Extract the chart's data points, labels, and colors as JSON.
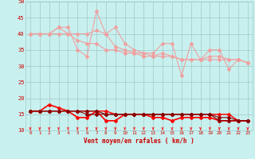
{
  "x": [
    0,
    1,
    2,
    3,
    4,
    5,
    6,
    7,
    8,
    9,
    10,
    11,
    12,
    13,
    14,
    15,
    16,
    17,
    18,
    19,
    20,
    21,
    22,
    23
  ],
  "series_upper": [
    [
      40,
      40,
      40,
      42,
      42,
      35,
      33,
      47,
      40,
      42,
      37,
      35,
      34,
      34,
      37,
      37,
      27,
      37,
      32,
      35,
      35,
      29,
      32,
      31
    ],
    [
      40,
      40,
      40,
      42,
      40,
      40,
      40,
      41,
      40,
      36,
      35,
      34,
      34,
      33,
      34,
      33,
      32,
      32,
      32,
      33,
      33,
      32,
      32,
      31
    ],
    [
      40,
      40,
      40,
      40,
      40,
      38,
      37,
      37,
      35,
      35,
      34,
      34,
      33,
      33,
      33,
      33,
      32,
      32,
      32,
      32,
      32,
      32,
      32,
      31
    ]
  ],
  "series_lower": [
    [
      16,
      16,
      18,
      17,
      16,
      14,
      14,
      16,
      13,
      13,
      15,
      15,
      15,
      14,
      14,
      13,
      14,
      14,
      14,
      14,
      13,
      13,
      13,
      13
    ],
    [
      16,
      16,
      16,
      16,
      16,
      16,
      16,
      16,
      16,
      15,
      15,
      15,
      15,
      15,
      15,
      15,
      15,
      15,
      15,
      15,
      15,
      15,
      13,
      13
    ],
    [
      16,
      16,
      16,
      16,
      16,
      16,
      16,
      16,
      15,
      15,
      15,
      15,
      15,
      15,
      15,
      15,
      15,
      15,
      15,
      15,
      14,
      14,
      13,
      13
    ],
    [
      16,
      16,
      16,
      16,
      16,
      16,
      15,
      15,
      15,
      15,
      15,
      15,
      15,
      15,
      15,
      15,
      15,
      15,
      15,
      15,
      13,
      13,
      13,
      13
    ]
  ],
  "xlabel": "Vent moyen/en rafales ( km/h )",
  "ylim": [
    10,
    50
  ],
  "xlim": [
    -0.5,
    23.5
  ],
  "yticks": [
    10,
    15,
    20,
    25,
    30,
    35,
    40,
    45,
    50
  ],
  "xticks": [
    0,
    1,
    2,
    3,
    4,
    5,
    6,
    7,
    8,
    9,
    10,
    11,
    12,
    13,
    14,
    15,
    16,
    17,
    18,
    19,
    20,
    21,
    22,
    23
  ],
  "bg_color": "#c8f0ee",
  "grid_color": "#a0c8c8",
  "line_color_upper": "#f0a0a0",
  "line_color_lower_red": "#ff0000",
  "line_color_lower_dark": "#880000",
  "arrow_color": "#ff2222",
  "xlabel_color": "#cc0000",
  "tick_color": "#cc0000",
  "marker_color_upper": "#e08080",
  "marker_color_lower": "#ff0000"
}
